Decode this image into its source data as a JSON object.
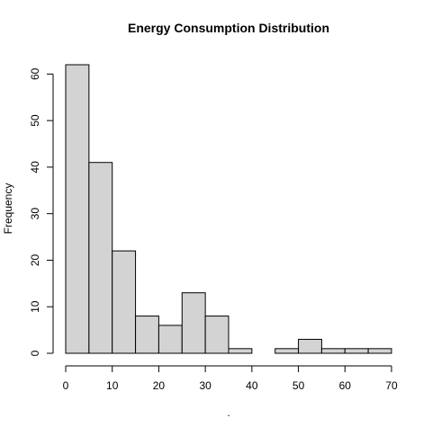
{
  "chart_data": {
    "type": "bar",
    "title": "Energy Consumption Distribution",
    "xlabel": ".",
    "ylabel": "Frequency",
    "bins": [
      {
        "start": 0,
        "end": 5,
        "count": 62
      },
      {
        "start": 5,
        "end": 10,
        "count": 41
      },
      {
        "start": 10,
        "end": 15,
        "count": 22
      },
      {
        "start": 15,
        "end": 20,
        "count": 8
      },
      {
        "start": 20,
        "end": 25,
        "count": 6
      },
      {
        "start": 25,
        "end": 30,
        "count": 13
      },
      {
        "start": 30,
        "end": 35,
        "count": 8
      },
      {
        "start": 35,
        "end": 40,
        "count": 1
      },
      {
        "start": 40,
        "end": 45,
        "count": 0
      },
      {
        "start": 45,
        "end": 50,
        "count": 1
      },
      {
        "start": 50,
        "end": 55,
        "count": 3
      },
      {
        "start": 55,
        "end": 60,
        "count": 1
      },
      {
        "start": 60,
        "end": 65,
        "count": 1
      },
      {
        "start": 65,
        "end": 70,
        "count": 1
      }
    ],
    "x_ticks": [
      0,
      10,
      20,
      30,
      40,
      50,
      60,
      70
    ],
    "y_ticks": [
      0,
      10,
      20,
      30,
      40,
      50,
      60
    ],
    "xlim": [
      0,
      70
    ],
    "ylim": [
      0,
      62
    ],
    "grid": false,
    "legend": "none",
    "bar_fill": "#d3d3d3",
    "bar_stroke": "#000000"
  }
}
